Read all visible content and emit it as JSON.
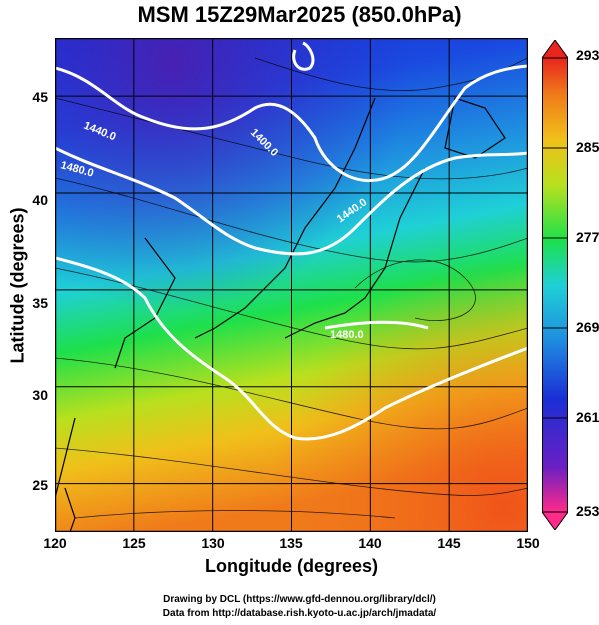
{
  "title": "MSM 15Z29Mar2025 (850.0hPa)",
  "x_axis": {
    "label": "Longitude (degrees)",
    "ticks": [
      "120",
      "125",
      "130",
      "135",
      "140",
      "145",
      "150"
    ],
    "range": [
      120,
      150
    ]
  },
  "y_axis": {
    "label": "Latitude  (degrees)",
    "ticks": [
      "25",
      "30",
      "35",
      "40",
      "45"
    ],
    "range": [
      22.5,
      48
    ]
  },
  "colorbar": {
    "ticks": [
      "293",
      "285",
      "277",
      "269",
      "261",
      "253"
    ],
    "range": [
      253,
      293
    ],
    "colors": [
      "#ff2a8a",
      "#6a1fc4",
      "#1a2fd6",
      "#1f8ee0",
      "#1fd0d6",
      "#1ee04a",
      "#b8e01e",
      "#f0c01a",
      "#f07a1a",
      "#e8261e"
    ]
  },
  "contours": {
    "color": "#ffffff",
    "labels": [
      "1440.0",
      "1400.0",
      "1480.0",
      "1440.0",
      "1480.0"
    ]
  },
  "credits": {
    "line1": "Drawing by DCL (https://www.gfd-dennou.org/library/dcl/)",
    "line2": "Data from http://database.rish.kyoto-u.ac.jp/arch/jmadata/"
  }
}
